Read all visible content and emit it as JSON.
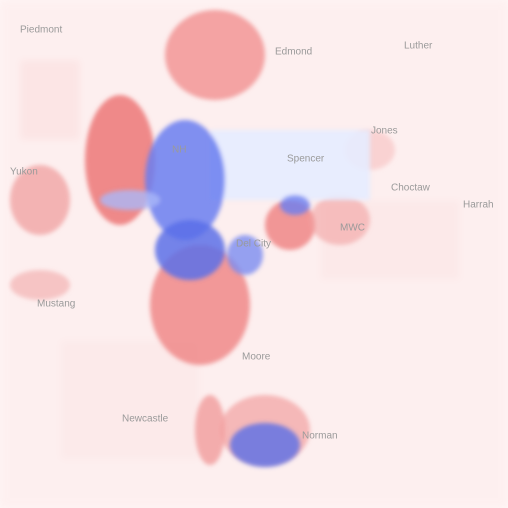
{
  "places": [
    {
      "label": "Piedmont"
    },
    {
      "label": "Edmond"
    },
    {
      "label": "Luther"
    },
    {
      "label": "Jones"
    },
    {
      "label": "Spencer"
    },
    {
      "label": "NH"
    },
    {
      "label": "Yukon"
    },
    {
      "label": "Choctaw"
    },
    {
      "label": "Harrah"
    },
    {
      "label": "MWC"
    },
    {
      "label": "Del City"
    },
    {
      "label": "Mustang"
    },
    {
      "label": "Moore"
    },
    {
      "label": "Newcastle"
    },
    {
      "label": "Norman"
    }
  ]
}
